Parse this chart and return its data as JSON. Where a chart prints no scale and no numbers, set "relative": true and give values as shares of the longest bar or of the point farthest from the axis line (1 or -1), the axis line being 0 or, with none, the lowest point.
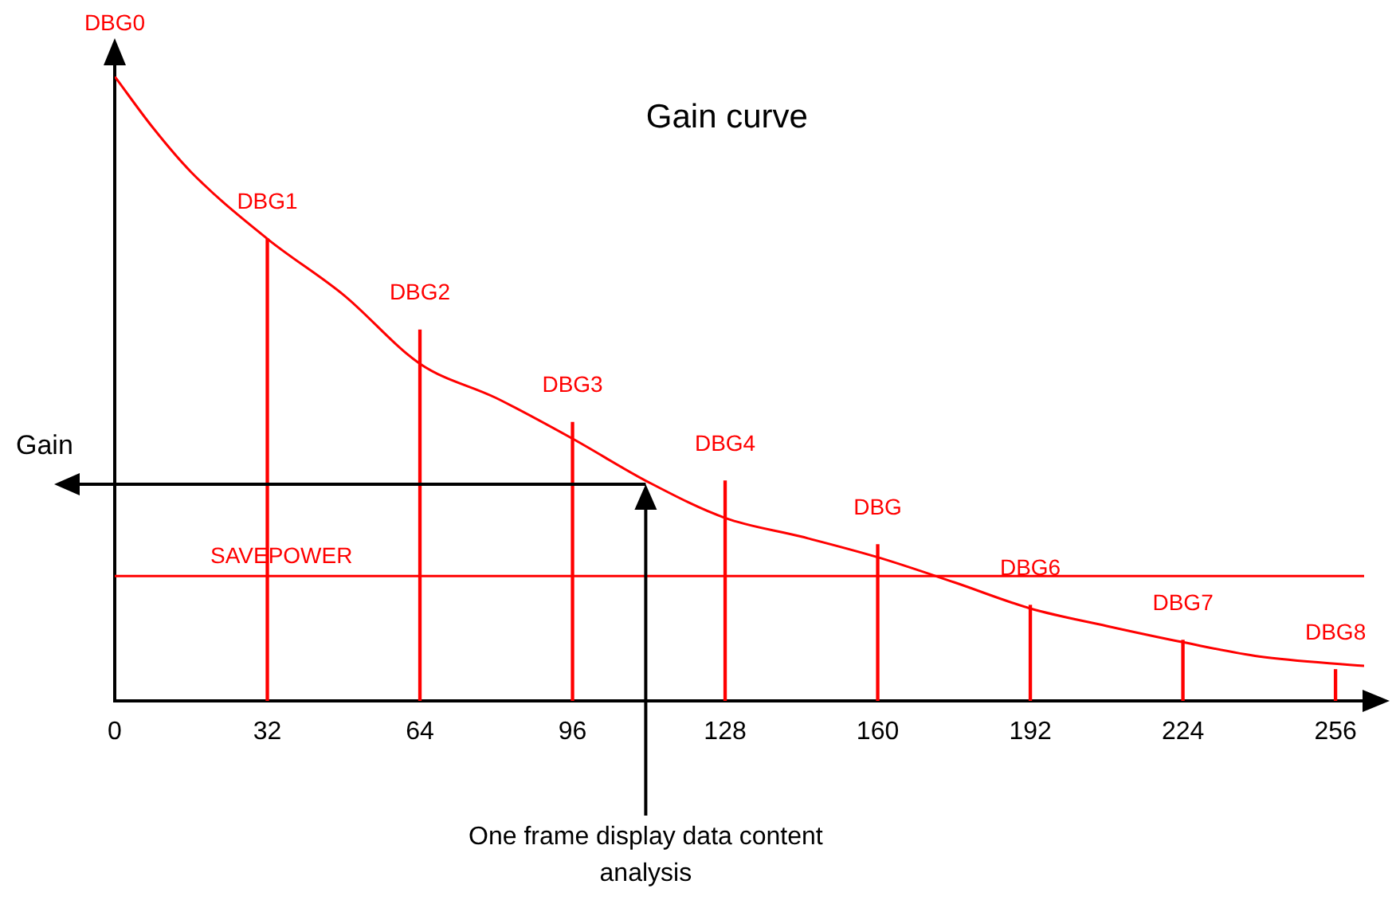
{
  "chart_data": {
    "type": "line",
    "title": "Gain curve",
    "ylabel": "Gain",
    "relative": true,
    "xlim": [
      0,
      262
    ],
    "xticks": [
      0,
      32,
      64,
      96,
      128,
      160,
      192,
      224,
      256
    ],
    "tick_labels": "x",
    "grid": false,
    "legend": false,
    "marker": "none",
    "series": [
      {
        "color": "#ff0000",
        "x": [
          0,
          8,
          16,
          32,
          48,
          64,
          80,
          96,
          112,
          128,
          144,
          160,
          176,
          192,
          208,
          224,
          240,
          262
        ],
        "values": [
          1,
          0.918,
          0.847,
          0.74,
          0.65,
          0.54,
          0.485,
          0.42,
          0.35,
          0.293,
          0.263,
          0.23,
          0.19,
          0.148,
          0.12,
          0.094,
          0.071,
          0.056
        ]
      },
      {
        "type": "bar",
        "color": "#ff0000",
        "x": [
          32,
          64,
          96,
          128,
          160,
          192,
          224,
          256
        ],
        "values": [
          0.74,
          0.594,
          0.446,
          0.352,
          0.25,
          0.153,
          0.097,
          0.05
        ]
      }
    ],
    "ref_lines": [
      {
        "axis": "y",
        "value": 0.2,
        "label": "SAVEPOWER",
        "color": "#ff0000"
      }
    ],
    "annotations": [
      {
        "text": "DBG0",
        "x": 0,
        "y": 1
      },
      {
        "text": "DBG1",
        "x": 32,
        "y": 0.74
      },
      {
        "text": "DBG2",
        "x": 64,
        "y": 0.594
      },
      {
        "text": "DBG3",
        "x": 96,
        "y": 0.446
      },
      {
        "text": "DBG4",
        "x": 128,
        "y": 0.352
      },
      {
        "text": "DBG",
        "x": 160,
        "y": 0.25
      },
      {
        "text": "DBG6",
        "x": 192,
        "y": 0.153
      },
      {
        "text": "DBG7",
        "x": 224,
        "y": 0.097
      },
      {
        "text": "DBG8",
        "x": 256,
        "y": 0.05
      },
      "One frame display data content analysis"
    ]
  }
}
